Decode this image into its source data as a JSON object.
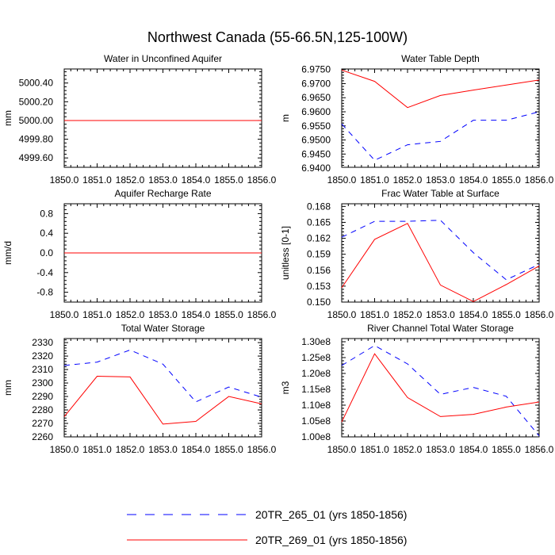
{
  "figure": {
    "title": "Northwest Canada (55-66.5N,125-100W)"
  },
  "legend": {
    "items": [
      {
        "label": "20TR_265_01 (yrs 1850-1856)",
        "color": "#0000ff",
        "dash": "dashed"
      },
      {
        "label": "20TR_269_01 (yrs 1850-1856)",
        "color": "#ff0000",
        "dash": "solid"
      }
    ]
  },
  "chart_data": [
    {
      "type": "line",
      "title": "Water in Unconfined Aquifer",
      "ylabel": "mm",
      "x": [
        1850,
        1851,
        1852,
        1853,
        1854,
        1855,
        1856
      ],
      "xlim": [
        1850,
        1856
      ],
      "xticks": [
        1850,
        1851,
        1852,
        1853,
        1854,
        1855,
        1856
      ],
      "xtick_labels": [
        "1850.0",
        "1851.0",
        "1852.0",
        "1853.0",
        "1854.0",
        "1855.0",
        "1856.0"
      ],
      "ylim": [
        4999.5,
        5000.55
      ],
      "yticks": [
        4999.6,
        4999.8,
        5000.0,
        5000.2,
        5000.4
      ],
      "ytick_labels": [
        "4999.60",
        "4999.80",
        "5000.00",
        "5000.20",
        "5000.40"
      ],
      "series": [
        {
          "name": "20TR_265_01 (yrs 1850-1856)",
          "color": "#0000ff",
          "dash": "dashed",
          "values": [
            5000,
            5000,
            5000,
            5000,
            5000,
            5000,
            5000
          ]
        },
        {
          "name": "20TR_269_01 (yrs 1850-1856)",
          "color": "#ff0000",
          "dash": "solid",
          "values": [
            5000,
            5000,
            5000,
            5000,
            5000,
            5000,
            5000
          ]
        }
      ]
    },
    {
      "type": "line",
      "title": "Water Table Depth",
      "ylabel": "m",
      "x": [
        1850,
        1851,
        1852,
        1853,
        1854,
        1855,
        1856
      ],
      "xlim": [
        1850,
        1856
      ],
      "xticks": [
        1850,
        1851,
        1852,
        1853,
        1854,
        1855,
        1856
      ],
      "xtick_labels": [
        "1850.0",
        "1851.0",
        "1852.0",
        "1853.0",
        "1854.0",
        "1855.0",
        "1856.0"
      ],
      "ylim": [
        6.9403,
        6.9752
      ],
      "yticks": [
        6.94,
        6.945,
        6.95,
        6.955,
        6.96,
        6.965,
        6.97,
        6.975
      ],
      "ytick_labels": [
        "6.9400",
        "6.9450",
        "6.9500",
        "6.9550",
        "6.9600",
        "6.9650",
        "6.9700",
        "6.9750"
      ],
      "series": [
        {
          "name": "20TR_265_01 (yrs 1850-1856)",
          "color": "#0000ff",
          "dash": "dashed",
          "values": [
            6.9557,
            6.9428,
            6.9483,
            6.9495,
            6.957,
            6.957,
            6.96
          ]
        },
        {
          "name": "20TR_269_01 (yrs 1850-1856)",
          "color": "#ff0000",
          "dash": "solid",
          "values": [
            6.9748,
            6.9708,
            6.9615,
            6.9658,
            6.9677,
            6.9695,
            6.9713
          ]
        }
      ]
    },
    {
      "type": "line",
      "title": "Aquifer Recharge Rate",
      "ylabel": "mm/d",
      "x": [
        1850,
        1851,
        1852,
        1853,
        1854,
        1855,
        1856
      ],
      "xlim": [
        1850,
        1856
      ],
      "xticks": [
        1850,
        1851,
        1852,
        1853,
        1854,
        1855,
        1856
      ],
      "xtick_labels": [
        "1850.0",
        "1851.0",
        "1852.0",
        "1853.0",
        "1854.0",
        "1855.0",
        "1856.0"
      ],
      "ylim": [
        -1.0,
        1.0
      ],
      "yticks": [
        -0.8,
        -0.4,
        0.0,
        0.4,
        0.8
      ],
      "ytick_labels": [
        "-0.8",
        "-0.4",
        "0.0",
        "0.4",
        "0.8"
      ],
      "series": [
        {
          "name": "20TR_265_01 (yrs 1850-1856)",
          "color": "#0000ff",
          "dash": "dashed",
          "values": [
            0,
            0,
            0,
            0,
            0,
            0,
            0
          ]
        },
        {
          "name": "20TR_269_01 (yrs 1850-1856)",
          "color": "#ff0000",
          "dash": "solid",
          "values": [
            0,
            0,
            0,
            0,
            0,
            0,
            0
          ]
        }
      ]
    },
    {
      "type": "line",
      "title": "Frac Water Table at Surface",
      "ylabel": "unitless [0-1]",
      "x": [
        1850,
        1851,
        1852,
        1853,
        1854,
        1855,
        1856
      ],
      "xlim": [
        1850,
        1856
      ],
      "xticks": [
        1850,
        1851,
        1852,
        1853,
        1854,
        1855,
        1856
      ],
      "xtick_labels": [
        "1850.0",
        "1851.0",
        "1852.0",
        "1853.0",
        "1854.0",
        "1855.0",
        "1856.0"
      ],
      "ylim": [
        0.15,
        0.1685
      ],
      "yticks": [
        0.15,
        0.153,
        0.156,
        0.159,
        0.162,
        0.165,
        0.168
      ],
      "ytick_labels": [
        "0.150",
        "0.153",
        "0.156",
        "0.159",
        "0.162",
        "0.165",
        "0.168"
      ],
      "series": [
        {
          "name": "20TR_265_01 (yrs 1850-1856)",
          "color": "#0000ff",
          "dash": "dashed",
          "values": [
            0.1622,
            0.1652,
            0.1652,
            0.1654,
            0.1593,
            0.1542,
            0.1571
          ]
        },
        {
          "name": "20TR_269_01 (yrs 1850-1856)",
          "color": "#ff0000",
          "dash": "solid",
          "values": [
            0.1527,
            0.1618,
            0.1648,
            0.1532,
            0.1501,
            0.1533,
            0.1568
          ]
        }
      ]
    },
    {
      "type": "line",
      "title": "Total Water Storage",
      "ylabel": "mm",
      "x": [
        1850,
        1851,
        1852,
        1853,
        1854,
        1855,
        1856
      ],
      "xlim": [
        1850,
        1856
      ],
      "xticks": [
        1850,
        1851,
        1852,
        1853,
        1854,
        1855,
        1856
      ],
      "xtick_labels": [
        "1850.0",
        "1851.0",
        "1852.0",
        "1853.0",
        "1854.0",
        "1855.0",
        "1856.0"
      ],
      "ylim": [
        2260,
        2333
      ],
      "yticks": [
        2260,
        2270,
        2280,
        2290,
        2300,
        2310,
        2320,
        2330
      ],
      "ytick_labels": [
        "2260",
        "2270",
        "2280",
        "2290",
        "2300",
        "2310",
        "2320",
        "2330"
      ],
      "series": [
        {
          "name": "20TR_265_01 (yrs 1850-1856)",
          "color": "#0000ff",
          "dash": "dashed",
          "values": [
            2313,
            2315.5,
            2324.5,
            2314,
            2286,
            2297,
            2289.5
          ]
        },
        {
          "name": "20TR_269_01 (yrs 1850-1856)",
          "color": "#ff0000",
          "dash": "solid",
          "values": [
            2275,
            2305,
            2304.5,
            2269.5,
            2271.5,
            2290,
            2284.5
          ]
        }
      ]
    },
    {
      "type": "line",
      "title": "River Channel Total Water Storage",
      "ylabel": "m3",
      "x": [
        1850,
        1851,
        1852,
        1853,
        1854,
        1855,
        1856
      ],
      "xlim": [
        1850,
        1856
      ],
      "xticks": [
        1850,
        1851,
        1852,
        1853,
        1854,
        1855,
        1856
      ],
      "xtick_labels": [
        "1850.0",
        "1851.0",
        "1852.0",
        "1853.0",
        "1854.0",
        "1855.0",
        "1856.0"
      ],
      "ylim": [
        100000000,
        131000000
      ],
      "yticks": [
        100000000,
        105000000,
        110000000,
        115000000,
        120000000,
        125000000,
        130000000
      ],
      "ytick_labels": [
        "1.00e8",
        "1.05e8",
        "1.10e8",
        "1.15e8",
        "1.20e8",
        "1.25e8",
        "1.30e8"
      ],
      "series": [
        {
          "name": "20TR_265_01 (yrs 1850-1856)",
          "color": "#0000ff",
          "dash": "dashed",
          "values": [
            122500000,
            128800000,
            123000000,
            113400000,
            115600000,
            112800000,
            100300000
          ]
        },
        {
          "name": "20TR_269_01 (yrs 1850-1856)",
          "color": "#ff0000",
          "dash": "solid",
          "values": [
            104700000,
            126200000,
            112400000,
            106400000,
            107100000,
            109400000,
            111000000
          ]
        }
      ]
    }
  ]
}
